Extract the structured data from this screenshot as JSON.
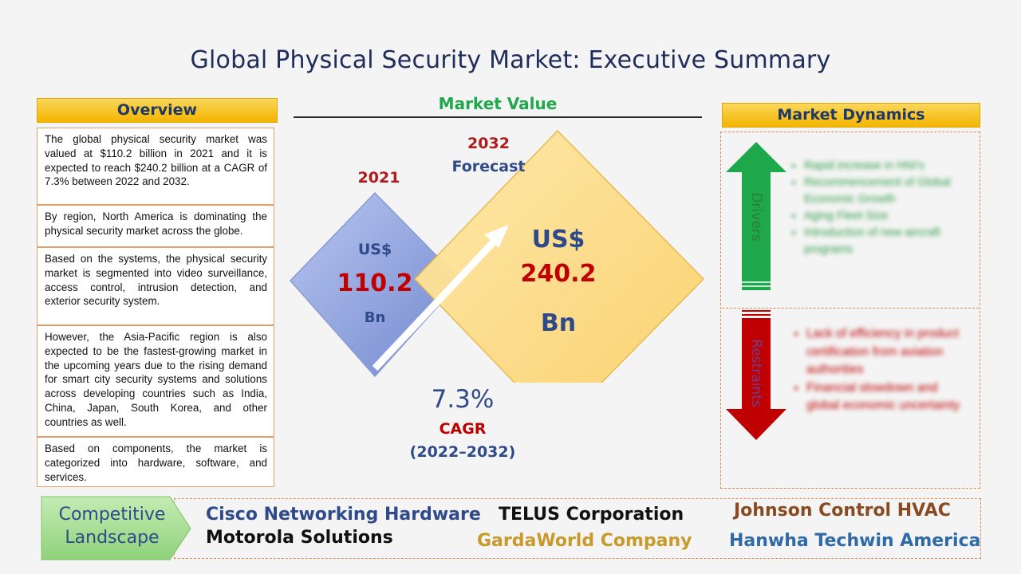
{
  "title": "Global Physical Security Market: Executive Summary",
  "overview": {
    "header": "Overview",
    "paragraphs": [
      "The global physical security market was valued at $110.2 billion in 2021 and it is expected to reach $240.2 billion at a CAGR of 7.3% between 2022 and 2032.",
      "By region, North America is dominating the physical security market across the globe.",
      "Based on the systems, the physical security market is segmented into video surveillance, access control, intrusion detection, and exterior security system.",
      "However, the Asia-Pacific region is also expected to be the fastest-growing market in the upcoming years due to the rising demand for smart city security systems and solutions across developing countries such as India, China, Japan, South Korea, and other countries as well.",
      "Based on components, the market is categorized into hardware, software, and services."
    ]
  },
  "market_value": {
    "header": "Market Value",
    "year_2021": "2021",
    "value_2021": {
      "currency": "US$",
      "amount": "110.2",
      "unit": "Bn"
    },
    "year_2032": "2032",
    "forecast_label": "Forecast",
    "value_2032": {
      "currency": "US$",
      "amount": "240.2",
      "unit": "Bn"
    },
    "cagr_value": "7.3%",
    "cagr_label": "CAGR",
    "cagr_period": "(2022–2032)"
  },
  "dynamics": {
    "header": "Market Dynamics",
    "drivers_label": "Drivers",
    "restraints_label": "Restraints",
    "drivers": [
      "Rapid increase in HNI's",
      "Recommencement of Global Economic Growth",
      "Aging Fleet Size",
      "Introduction of new aircraft programs"
    ],
    "restraints": [
      "Lack of efficiency in product certification from aviation authorities",
      "Financial slowdown and global economic uncertainty"
    ],
    "colors": {
      "drivers": "#1fa84b",
      "restraints": "#c00000",
      "drivers_text": "#2f9e46",
      "restraints_text": "#c00000"
    }
  },
  "competitive": {
    "label_line1": "Competitive",
    "label_line2": "Landscape",
    "companies": [
      "Cisco Networking Hardware",
      "Motorola Solutions",
      "TELUS Corporation",
      "GardaWorld Company",
      "Johnson Control HVAC",
      "Hanwha Techwin America"
    ]
  }
}
